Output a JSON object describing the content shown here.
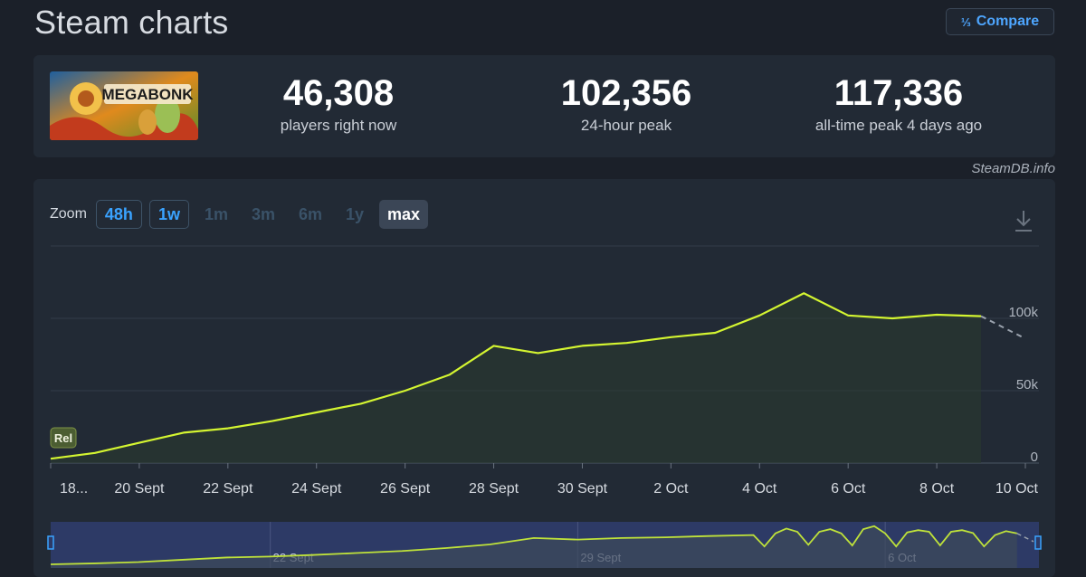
{
  "header": {
    "title": "Steam charts",
    "compare_label": "Compare",
    "compare_icon": "compare-icon"
  },
  "stats": [
    {
      "value": "46,308",
      "label": "players right now"
    },
    {
      "value": "102,356",
      "label": "24-hour peak"
    },
    {
      "value": "117,336",
      "label": "all-time peak 4 days ago"
    }
  ],
  "game": {
    "logo_text": "MEGABONK"
  },
  "source": "SteamDB.info",
  "zoom": {
    "label": "Zoom",
    "options": [
      {
        "label": "48h",
        "state": "active"
      },
      {
        "label": "1w",
        "state": "active"
      },
      {
        "label": "1m",
        "state": "disabled"
      },
      {
        "label": "3m",
        "state": "disabled"
      },
      {
        "label": "6m",
        "state": "disabled"
      },
      {
        "label": "1y",
        "state": "disabled"
      },
      {
        "label": "max",
        "state": "selected"
      }
    ]
  },
  "chart_data": {
    "type": "line",
    "title": "",
    "xlabel": "",
    "ylabel": "",
    "x_unit": "day of Sept 2025 continuing (Oct 1 = 31)",
    "x_tick_labels": [
      "18...",
      "20 Sept",
      "22 Sept",
      "24 Sept",
      "26 Sept",
      "28 Sept",
      "30 Sept",
      "2 Oct",
      "4 Oct",
      "6 Oct",
      "8 Oct",
      "10 Oct"
    ],
    "x_ticks": [
      18,
      20,
      22,
      24,
      26,
      28,
      30,
      32,
      34,
      36,
      38,
      40
    ],
    "y_ticks": [
      0,
      50000,
      100000
    ],
    "y_tick_labels": [
      "0",
      "50k",
      "100k"
    ],
    "ylim": [
      0,
      150000
    ],
    "xlim": [
      18,
      40
    ],
    "series": [
      {
        "color": "#d4f531",
        "x": [
          18,
          19,
          20,
          21,
          22,
          23,
          24,
          25,
          26,
          27,
          28,
          29,
          30,
          31,
          32,
          33,
          34,
          35,
          36,
          37,
          38,
          39
        ],
        "values": [
          3000,
          7000,
          14000,
          21000,
          24000,
          29000,
          35000,
          41000,
          50000,
          61000,
          81000,
          76000,
          81000,
          83000,
          87000,
          90000,
          102000,
          117336,
          102000,
          100000,
          102500,
          101500
        ]
      }
    ],
    "projection": {
      "x": [
        39,
        40
      ],
      "values": [
        101500,
        86000
      ],
      "color": "#9aa2ad",
      "style": "dashed"
    },
    "annotation": {
      "label": "Rel",
      "x": 18
    },
    "navigator": {
      "tick_labels": [
        "22 Sept",
        "29 Sept",
        "6 Oct"
      ],
      "tick_x": [
        22,
        29,
        36
      ],
      "xlim": [
        17,
        39.5
      ],
      "daily_x": [
        17,
        18,
        19,
        20,
        21,
        22,
        23,
        24,
        25,
        26,
        27,
        28,
        29,
        30,
        31,
        32,
        33
      ],
      "daily_values": [
        0,
        3000,
        7000,
        14000,
        21000,
        24000,
        29000,
        35000,
        41000,
        50000,
        61000,
        81000,
        76000,
        81000,
        83000,
        87000,
        90000
      ],
      "hourly_x": [
        33.0,
        33.25,
        33.5,
        33.75,
        34.0,
        34.25,
        34.5,
        34.75,
        35.0,
        35.25,
        35.5,
        35.75,
        36.0,
        36.25,
        36.5,
        36.75,
        37.0,
        37.25,
        37.5,
        37.75,
        38.0,
        38.25,
        38.5,
        38.75,
        39.0
      ],
      "hourly_values": [
        90000,
        55000,
        95000,
        110000,
        100000,
        60000,
        100000,
        108000,
        95000,
        58000,
        108000,
        117336,
        95000,
        55000,
        98000,
        105000,
        100000,
        58000,
        100000,
        105000,
        96000,
        55000,
        90000,
        102000,
        95000
      ]
    },
    "grid": true,
    "legend": "none"
  }
}
